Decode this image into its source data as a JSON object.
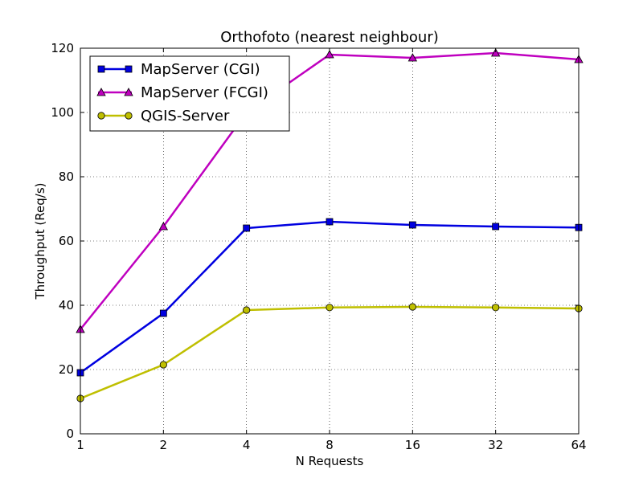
{
  "chart_data": {
    "type": "line",
    "title": "Orthofoto (nearest neighbour)",
    "xlabel": "N Requests",
    "ylabel": "Throughput (Req/s)",
    "x_scale": "log2",
    "categories": [
      "1",
      "2",
      "4",
      "8",
      "16",
      "32",
      "64"
    ],
    "x": [
      1,
      2,
      4,
      8,
      16,
      32,
      64
    ],
    "xlim": [
      1,
      64
    ],
    "ylim": [
      0,
      120
    ],
    "y_ticks": [
      0,
      20,
      40,
      60,
      80,
      100,
      120
    ],
    "grid": true,
    "legend_position": "top-left",
    "series": [
      {
        "name": "MapServer (CGI)",
        "color": "#0000e0",
        "marker": "square",
        "values": [
          19,
          37.5,
          64,
          66,
          65,
          64.5,
          64.2
        ]
      },
      {
        "name": "MapServer (FCGI)",
        "color": "#bf00bf",
        "marker": "triangle",
        "values": [
          32.5,
          64.5,
          100,
          118,
          117,
          118.5,
          116.5
        ]
      },
      {
        "name": "QGIS-Server",
        "color": "#bfbf00",
        "marker": "circle",
        "values": [
          11,
          21.5,
          38.5,
          39.3,
          39.5,
          39.3,
          39
        ]
      }
    ]
  }
}
